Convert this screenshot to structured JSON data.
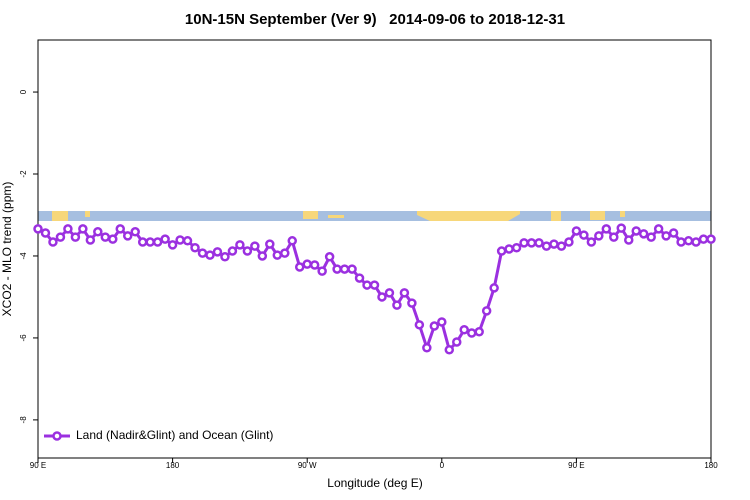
{
  "chart_data": {
    "type": "line",
    "title": "10N-15N September (Ver 9)   2014-09-06 to 2018-12-31",
    "xlabel": "Longitude (deg E)",
    "ylabel": "XCO2 - MLO trend (ppm)",
    "x": [
      90,
      95,
      100,
      105,
      110,
      115,
      120,
      125,
      130,
      135,
      140,
      145,
      150,
      155,
      160,
      165,
      170,
      175,
      180,
      185,
      190,
      195,
      200,
      205,
      210,
      215,
      220,
      225,
      230,
      235,
      240,
      245,
      250,
      255,
      260,
      265,
      270,
      275,
      280,
      285,
      290,
      295,
      300,
      305,
      310,
      315,
      320,
      325,
      330,
      335,
      340,
      345,
      350,
      355,
      360,
      365,
      370,
      375,
      380,
      385,
      390,
      395,
      400,
      405,
      410,
      415,
      420,
      425,
      430,
      435,
      440,
      445,
      450,
      455,
      460,
      465,
      470,
      475,
      480,
      485,
      490,
      495,
      500,
      505,
      510,
      515,
      520,
      525,
      530,
      535,
      540
    ],
    "series": [
      {
        "name": "Land (Nadir&Glint) and Ocean (Glint)",
        "color": "#9b30e0",
        "values": [
          -3.34,
          -3.44,
          -3.66,
          -3.54,
          -3.34,
          -3.54,
          -3.34,
          -3.61,
          -3.41,
          -3.54,
          -3.59,
          -3.34,
          -3.51,
          -3.41,
          -3.66,
          -3.66,
          -3.66,
          -3.59,
          -3.73,
          -3.61,
          -3.63,
          -3.8,
          -3.93,
          -3.98,
          -3.9,
          -4.02,
          -3.88,
          -3.73,
          -3.88,
          -3.76,
          -4.0,
          -3.71,
          -3.98,
          -3.93,
          -3.63,
          -4.27,
          -4.2,
          -4.22,
          -4.37,
          -4.02,
          -4.32,
          -4.32,
          -4.32,
          -4.54,
          -4.71,
          -4.71,
          -5.0,
          -4.9,
          -5.2,
          -4.9,
          -5.15,
          -5.68,
          -6.24,
          -5.71,
          -5.61,
          -6.29,
          -6.1,
          -5.8,
          -5.88,
          -5.85,
          -5.34,
          -4.78,
          -3.88,
          -3.83,
          -3.8,
          -3.68,
          -3.68,
          -3.68,
          -3.76,
          -3.71,
          -3.76,
          -3.66,
          -3.39,
          -3.49,
          -3.66,
          -3.51,
          -3.34,
          -3.54,
          -3.32,
          -3.61,
          -3.39,
          -3.46,
          -3.54,
          -3.34,
          -3.51,
          -3.44,
          -3.66,
          -3.63,
          -3.66,
          -3.59,
          -3.59
        ]
      }
    ],
    "xlim": [
      90,
      540
    ],
    "xticks": [
      {
        "value": 90,
        "label": "90 E"
      },
      180,
      {
        "value": 270,
        "label": "90 W"
      },
      {
        "value": 360,
        "label": "0"
      },
      {
        "value": 450,
        "label": "90 E"
      },
      {
        "value": 540,
        "label": "180"
      }
    ],
    "ylim": [
      -8.93,
      1.27
    ],
    "yticks": [
      0,
      -2,
      -4,
      -6,
      -8
    ],
    "legend": "bottom-left"
  }
}
